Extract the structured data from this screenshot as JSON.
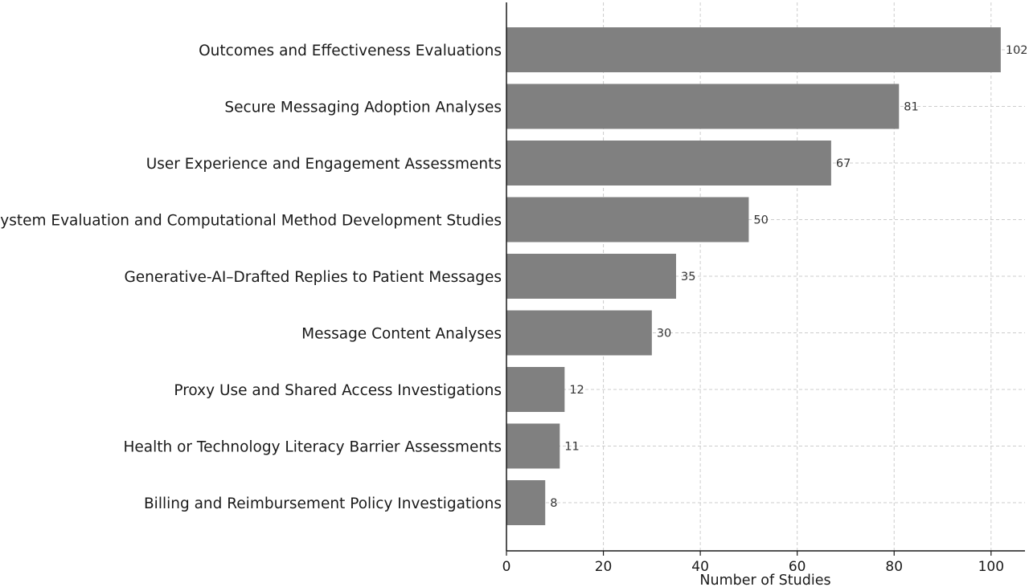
{
  "chart_data": {
    "type": "bar",
    "orientation": "horizontal",
    "title": "",
    "xlabel": "Number of Studies",
    "ylabel": "",
    "categories": [
      "Outcomes and Effectiveness Evaluations",
      "Secure Messaging Adoption Analyses",
      "User Experience and Engagement Assessments",
      "System Evaluation and Computational Method Development Studies",
      "Generative-AI–Drafted Replies to Patient Messages",
      "Message Content Analyses",
      "Proxy Use and Shared Access Investigations",
      "Health or Technology Literacy Barrier Assessments",
      "Billing and Reimbursement Policy Investigations"
    ],
    "values": [
      102,
      81,
      67,
      50,
      35,
      30,
      12,
      11,
      8
    ],
    "xlim": [
      0,
      107
    ],
    "xticks": [
      0,
      20,
      40,
      60,
      80,
      100
    ],
    "grid": true,
    "bar_color": "#808080",
    "grid_color": "#cccccc"
  }
}
